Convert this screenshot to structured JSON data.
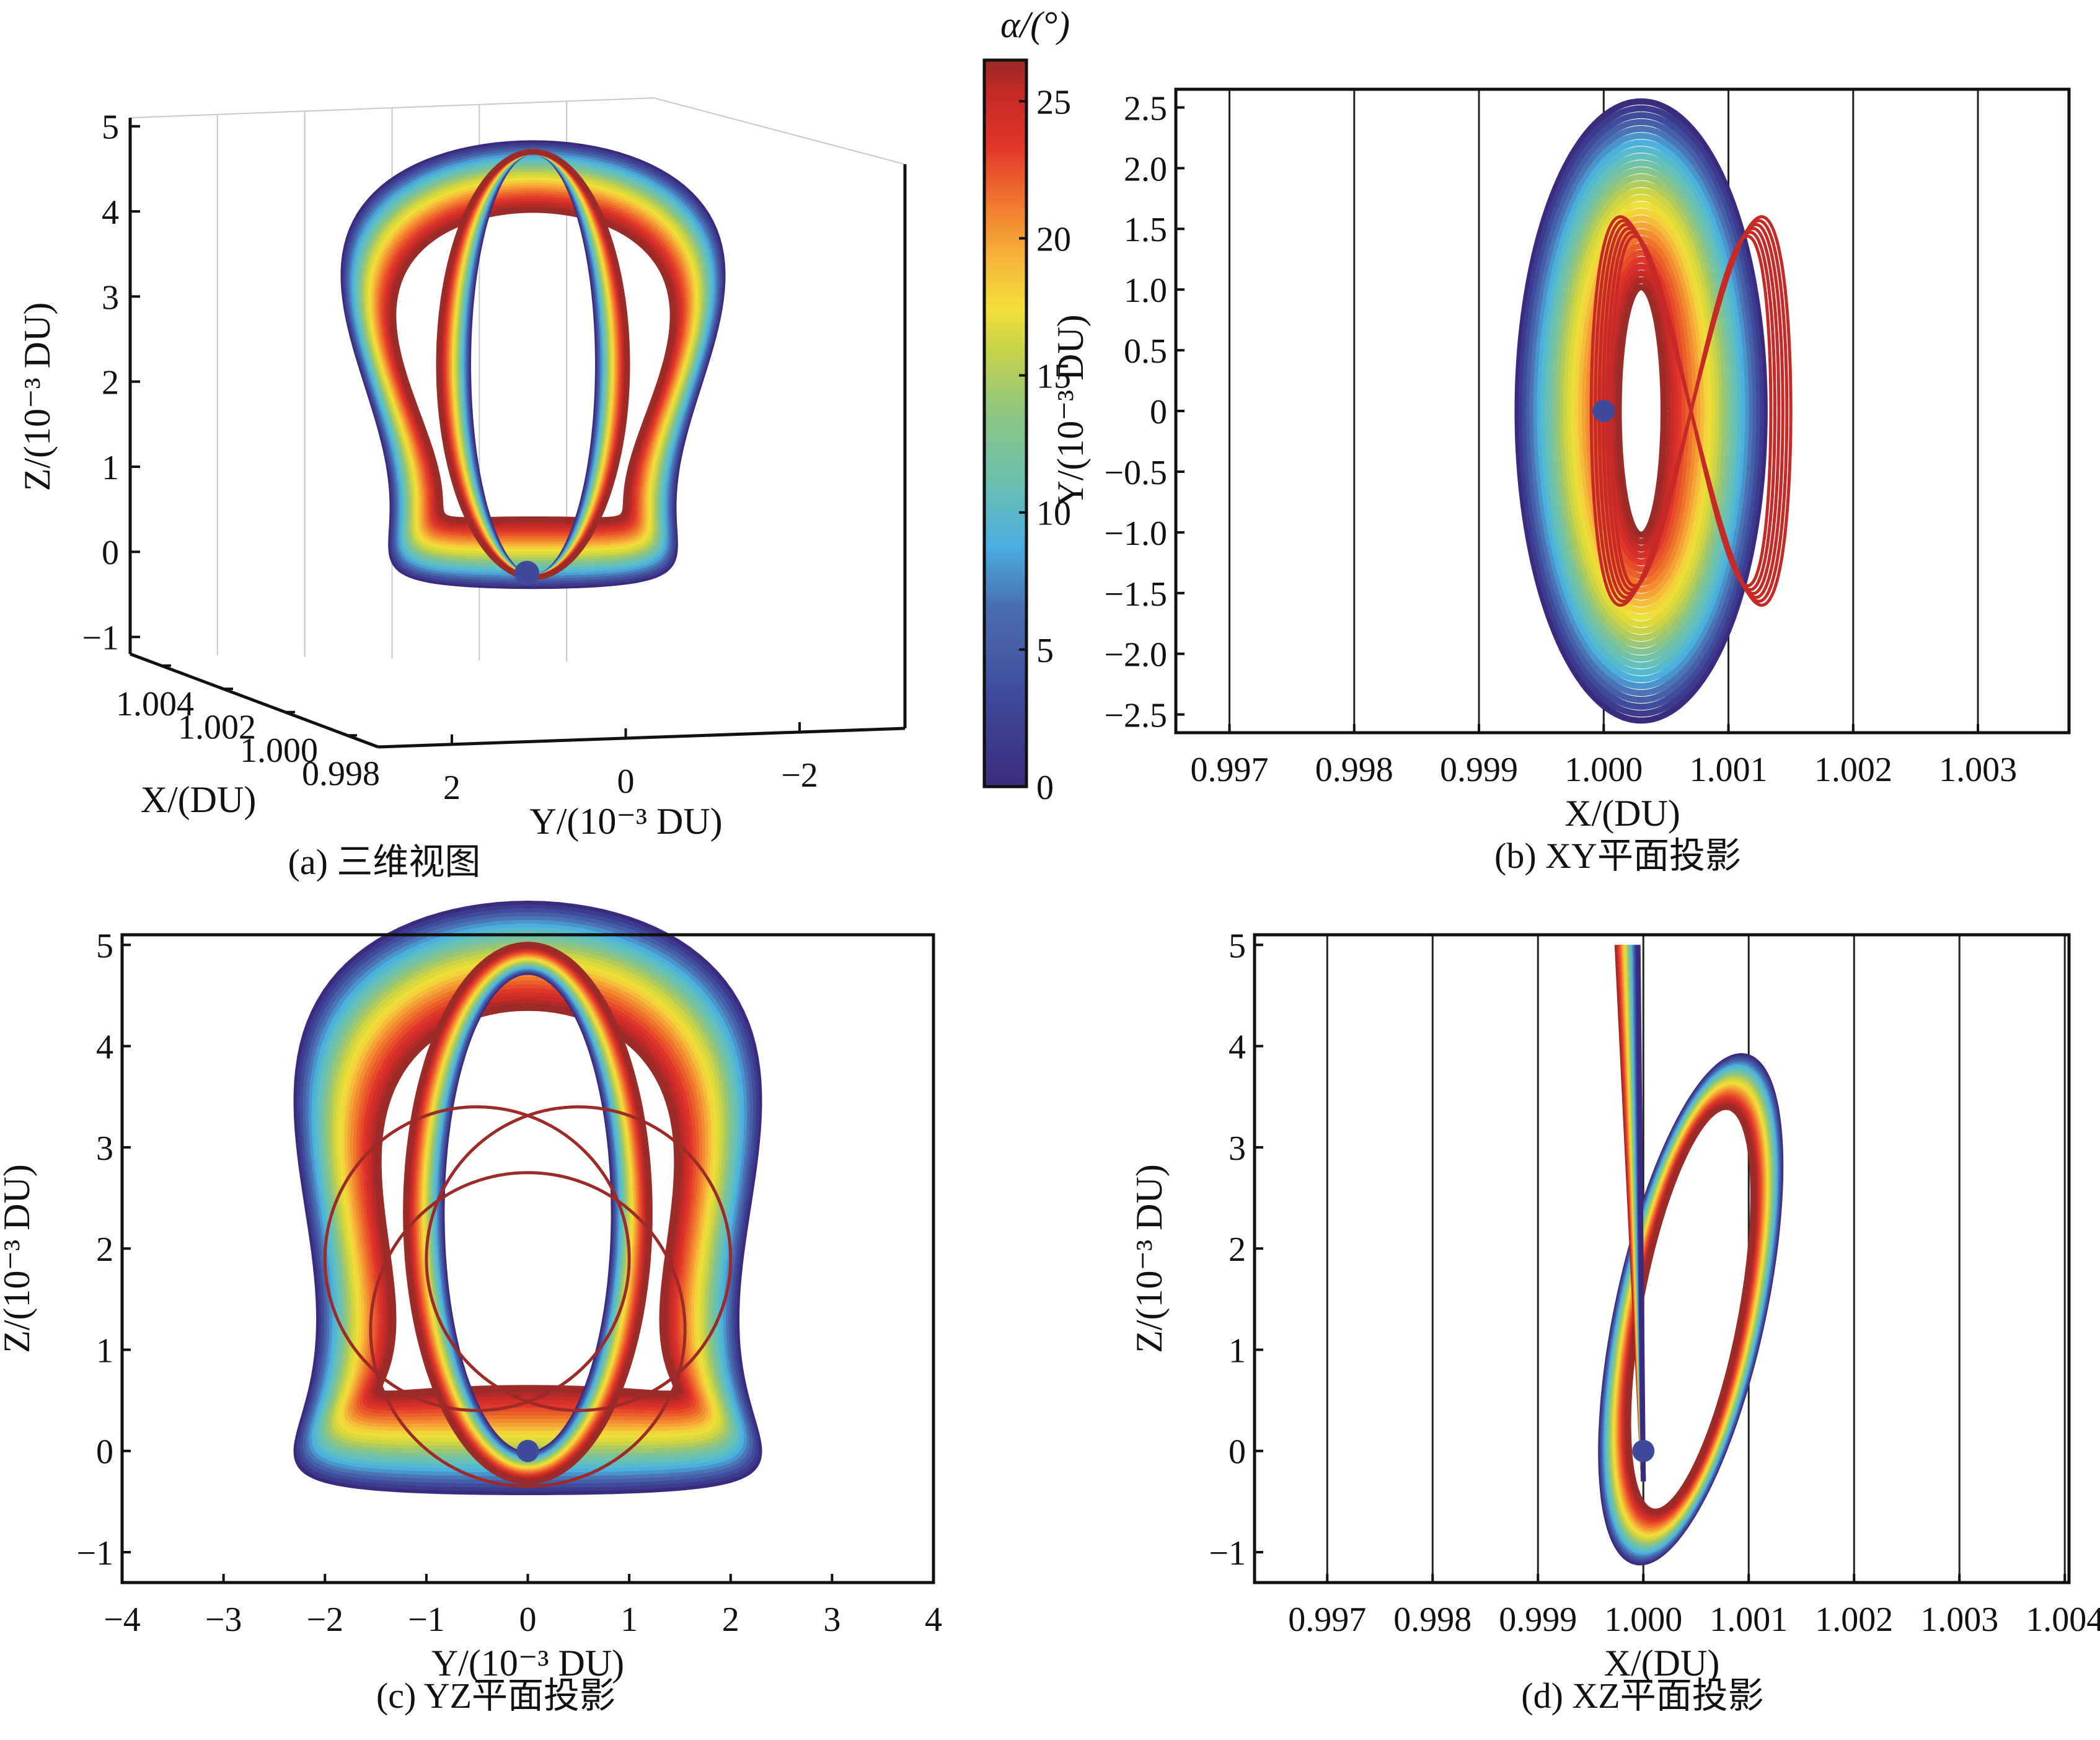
{
  "colorbar": {
    "title": "α/(°)",
    "ticks": [
      "0",
      "5",
      "10",
      "15",
      "20",
      "25"
    ],
    "range": [
      0,
      26.5
    ],
    "colormap": [
      "#3b2b7e",
      "#3f4a9a",
      "#4a6fb3",
      "#4aaee0",
      "#5fbfc0",
      "#7cc39a",
      "#a6c964",
      "#d6d83c",
      "#f3e03a",
      "#f6b23a",
      "#f2852f",
      "#ea5a2a",
      "#e0342a",
      "#c62a27",
      "#9c2a26"
    ]
  },
  "chart_data": [
    {
      "id": "a",
      "type": "line",
      "title": "(a) 三维视图",
      "xlabel": "X/(DU)",
      "ylabel": "Y/(10⁻³ DU)",
      "zlabel": "Z/(10⁻³ DU)",
      "x_ticks": [
        "1.004",
        "1.002",
        "1.000",
        "0.998"
      ],
      "y_ticks": [
        "2",
        "0",
        "−2"
      ],
      "z_ticks": [
        "5",
        "4",
        "3",
        "2",
        "1",
        "0",
        "−1"
      ],
      "zlim": [
        -1.2,
        5.1
      ],
      "grid": true,
      "description": "3D family of halo-like orbits colored by α from 0° to 26.5°; primary body marker near origin"
    },
    {
      "id": "b",
      "type": "line",
      "title": "(b) XY平面投影",
      "xlabel": "X/(DU)",
      "ylabel": "Y/(10⁻³ DU)",
      "x_ticks": [
        "0.997",
        "0.998",
        "0.999",
        "1.000",
        "1.001",
        "1.002",
        "1.003"
      ],
      "y_ticks": [
        "2.5",
        "2.0",
        "1.5",
        "1.0",
        "0.5",
        "0",
        "−0.5",
        "−1.0",
        "−1.5",
        "−2.0",
        "−2.5"
      ],
      "xlim": [
        0.99657,
        1.00373
      ],
      "ylim": [
        -2.65,
        2.65
      ],
      "marker": {
        "x": 1.0,
        "y": 0.0
      },
      "grid": true
    },
    {
      "id": "c",
      "type": "line",
      "title": "(c) YZ平面投影",
      "xlabel": "Y/(10⁻³ DU)",
      "ylabel": "Z/(10⁻³ DU)",
      "x_ticks": [
        "−4",
        "−3",
        "−2",
        "−1",
        "0",
        "1",
        "2",
        "3",
        "4"
      ],
      "y_ticks": [
        "5",
        "4",
        "3",
        "2",
        "1",
        "0",
        "−1"
      ],
      "xlim": [
        -4,
        4
      ],
      "ylim": [
        -1.3,
        5.1
      ],
      "marker": {
        "x": 0.0,
        "y": 0.0
      },
      "grid": false
    },
    {
      "id": "d",
      "type": "line",
      "title": "(d) XZ平面投影",
      "xlabel": "X/(DU)",
      "ylabel": "Z/(10⁻³ DU)",
      "x_ticks": [
        "0.997",
        "0.998",
        "0.999",
        "1.000",
        "1.001",
        "1.002",
        "1.003",
        "1.004"
      ],
      "y_ticks": [
        "5",
        "4",
        "3",
        "2",
        "1",
        "0",
        "−1"
      ],
      "xlim": [
        0.99631,
        1.00404
      ],
      "ylim": [
        -1.3,
        5.1
      ],
      "marker": {
        "x": 1.0,
        "y": 0.0
      },
      "grid": true
    }
  ]
}
